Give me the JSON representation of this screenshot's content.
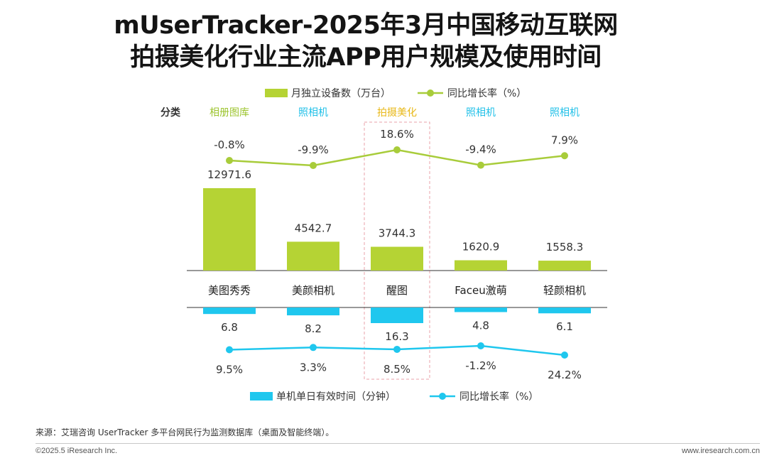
{
  "title": {
    "line1": "mUserTracker-2025年3月中国移动互联网",
    "line2": "拍摄美化行业主流APP用户规模及使用时间"
  },
  "chart_data": {
    "type": "bar",
    "category_header": "分类",
    "categories": [
      "美图秀秀",
      "美颜相机",
      "醒图",
      "Faceu激萌",
      "轻颜相机"
    ],
    "category_types": [
      "相册图库",
      "照相机",
      "拍摄美化",
      "照相机",
      "照相机"
    ],
    "highlight_index": 2,
    "top_legend": {
      "bar": "月独立设备数（万台）",
      "line": "同比增长率（%）"
    },
    "bottom_legend": {
      "bar": "单机单日有效时间（分钟）",
      "line": "同比增长率（%）"
    },
    "top_bar_values": [
      12971.6,
      4542.7,
      3744.3,
      1620.9,
      1558.3
    ],
    "top_bar_labels": [
      "12971.6",
      "4542.7",
      "3744.3",
      "1620.9",
      "1558.3"
    ],
    "top_growth_values": [
      -0.8,
      -9.9,
      18.6,
      -9.4,
      7.9
    ],
    "top_growth_labels": [
      "-0.8%",
      "-9.9%",
      "18.6%",
      "-9.4%",
      "7.9%"
    ],
    "bottom_bar_values": [
      6.8,
      8.2,
      16.3,
      4.8,
      6.1
    ],
    "bottom_bar_labels": [
      "6.8",
      "8.2",
      "16.3",
      "4.8",
      "6.1"
    ],
    "bottom_growth_values": [
      9.5,
      3.3,
      8.5,
      -1.2,
      24.2
    ],
    "bottom_growth_labels": [
      "9.5%",
      "3.3%",
      "8.5%",
      "-1.2%",
      "24.2%"
    ],
    "colors": {
      "top_bar": "#b5d334",
      "top_line": "#a8cc3a",
      "bottom_bar": "#1fc7ee",
      "bottom_line": "#1fc7ee",
      "type_album": "#9cc42e",
      "type_camera": "#21c0e8",
      "type_beauty": "#e8b818",
      "highlight_box": "#e8a0a8"
    }
  },
  "footer": {
    "source": "来源：艾瑞咨询 UserTracker 多平台网民行为监测数据库（桌面及智能终端）。",
    "copyright": "©2025.5 iResearch Inc.",
    "website": "www.iresearch.com.cn"
  }
}
